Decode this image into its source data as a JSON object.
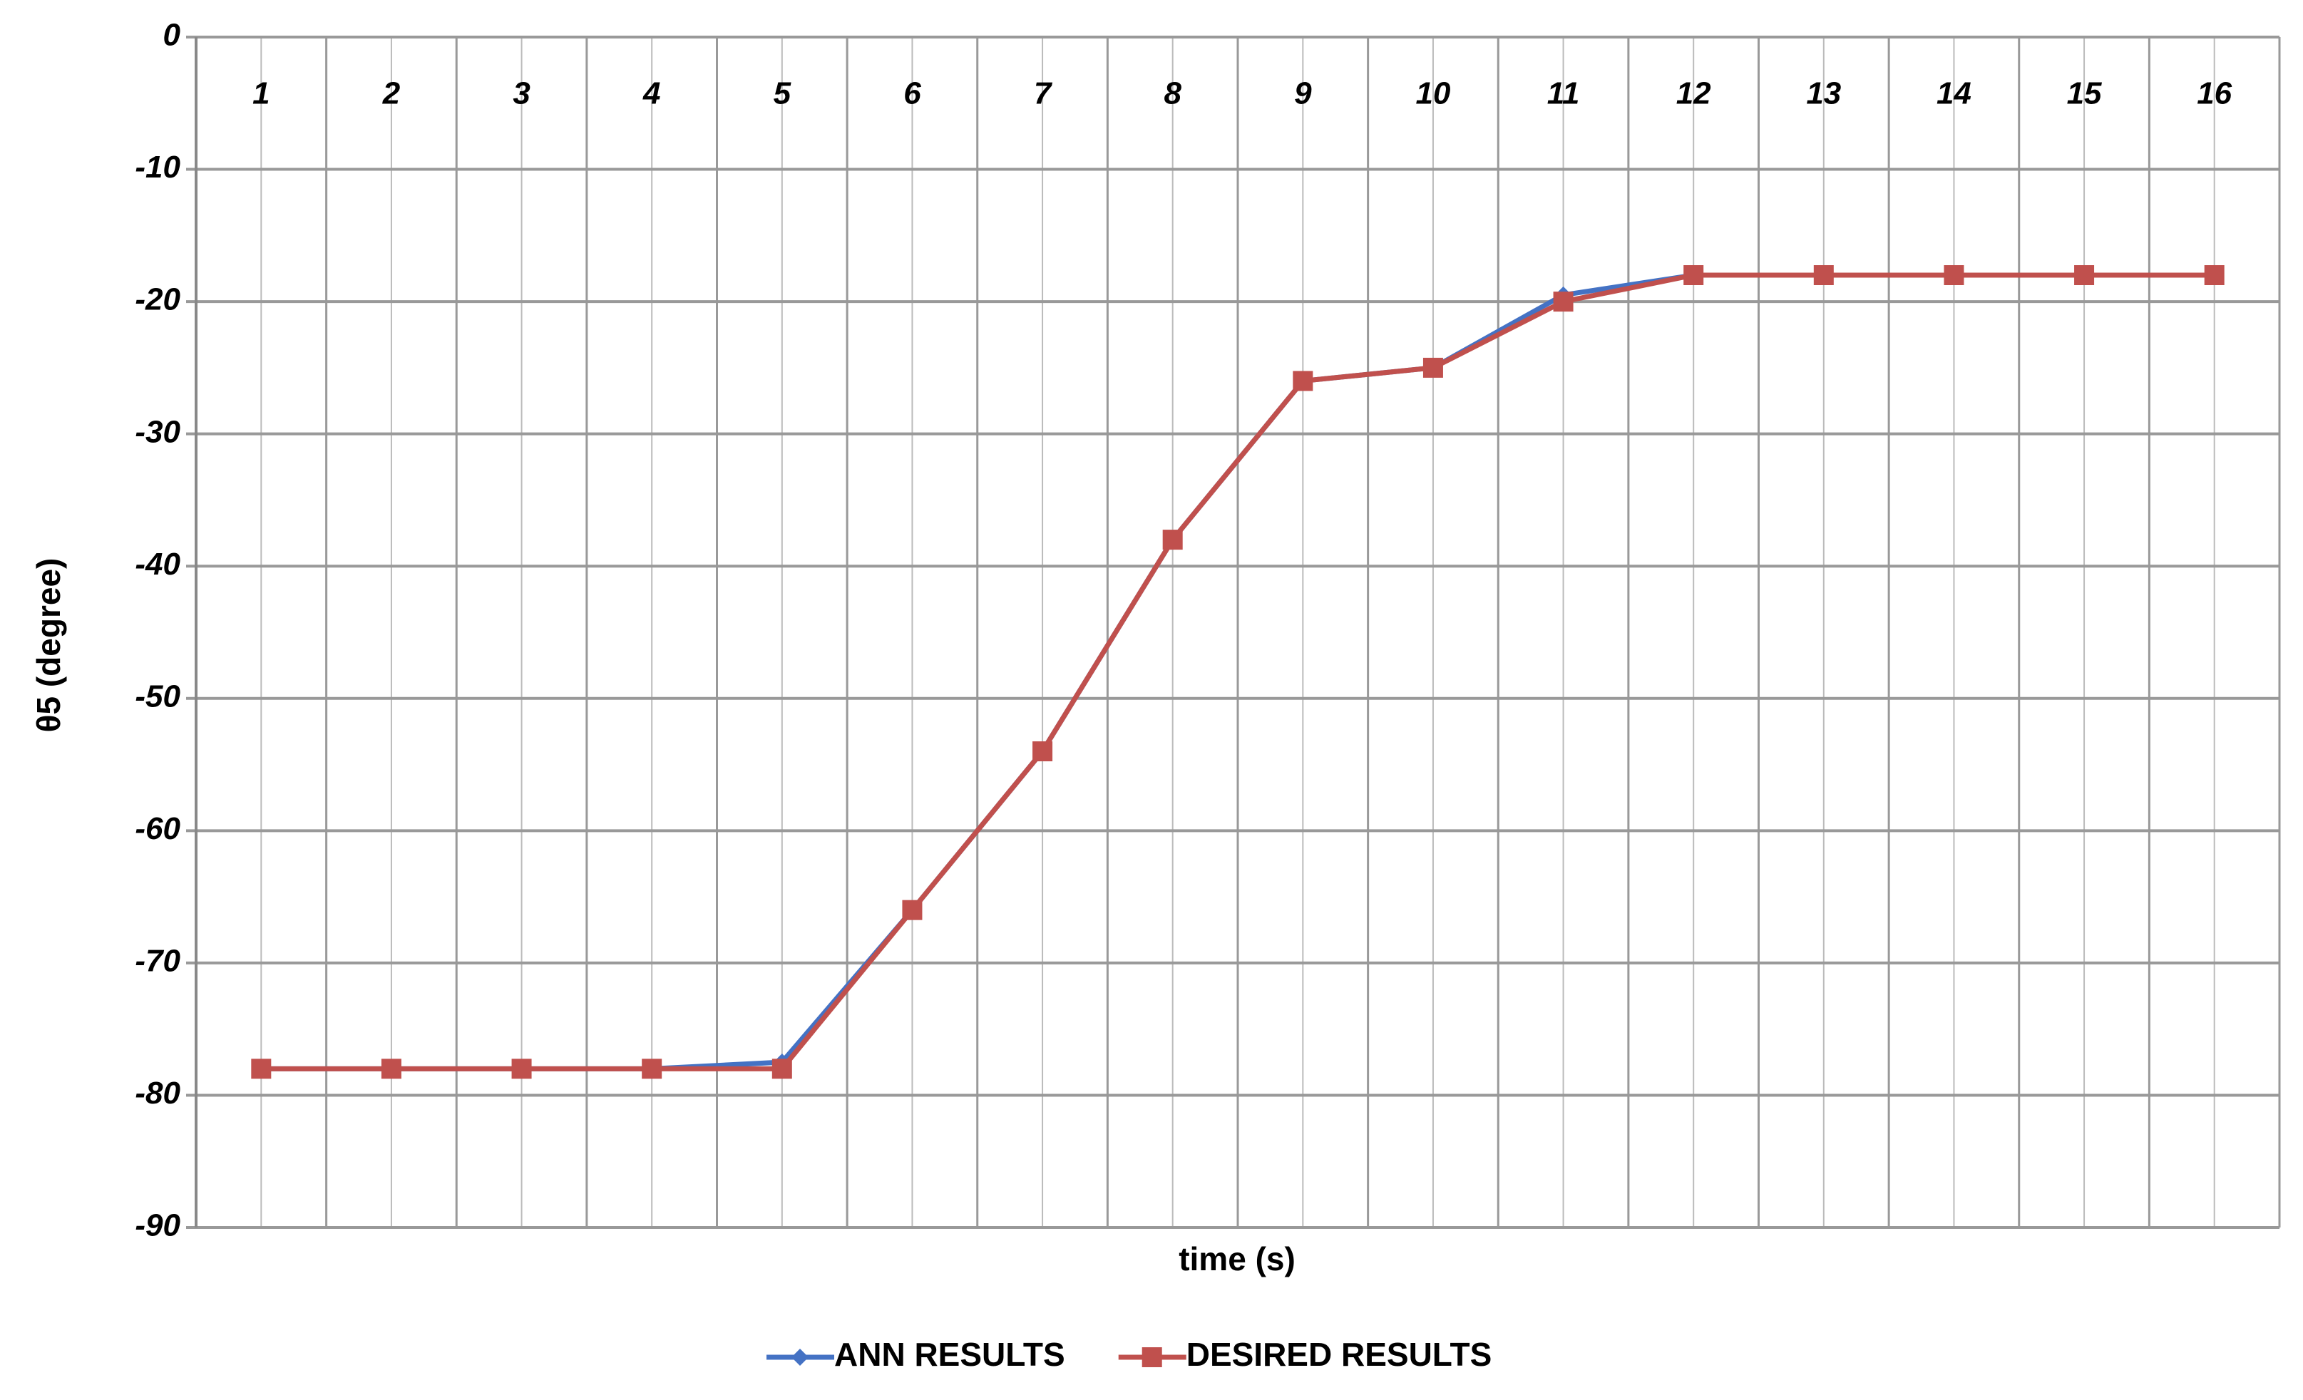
{
  "chart_data": {
    "type": "line",
    "x_label": "time (s)",
    "y_label": "θ5 (degree)",
    "categories": [
      "1",
      "2",
      "3",
      "4",
      "5",
      "6",
      "7",
      "8",
      "9",
      "10",
      "11",
      "12",
      "13",
      "14",
      "15",
      "16"
    ],
    "series": [
      {
        "name": "ANN RESULTS",
        "color": "#4472c4",
        "marker": "diamond",
        "values": [
          -78,
          -78,
          -78,
          -78,
          -77.5,
          -66,
          -54,
          -38,
          -26,
          -25,
          -19.5,
          -18,
          -18,
          -18,
          -18,
          -18
        ]
      },
      {
        "name": "DESIRED RESULTS",
        "color": "#c0504d",
        "marker": "square",
        "values": [
          -78,
          -78,
          -78,
          -78,
          -78,
          -66,
          -54,
          -38,
          -26,
          -25,
          -20,
          -18,
          -18,
          -18,
          -18,
          -18
        ]
      }
    ],
    "ylim": [
      -90,
      0
    ],
    "yticks": [
      -90,
      -80,
      -70,
      -60,
      -50,
      -40,
      -30,
      -20,
      -10,
      0
    ],
    "grid": true
  }
}
